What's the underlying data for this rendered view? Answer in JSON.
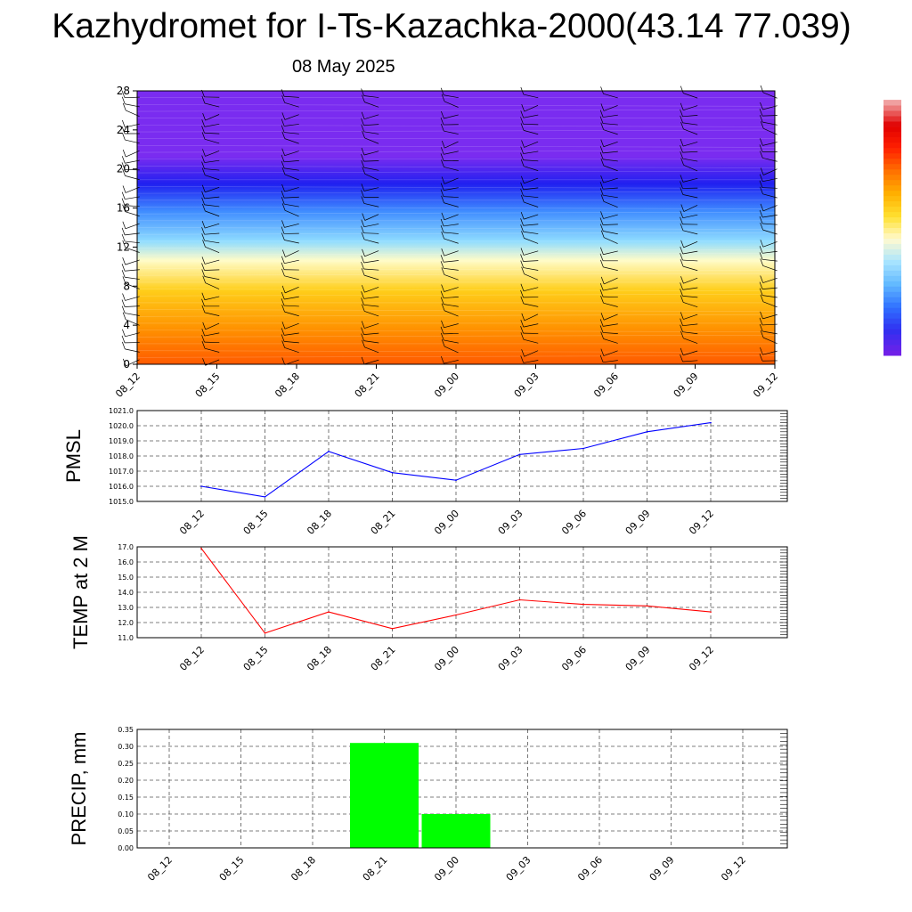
{
  "title": "Kazhydromet for I-Ts-Kazachka-2000(43.14 77.039)",
  "subtitle": "08 May 2025",
  "times": [
    "08_12",
    "08_15",
    "08_18",
    "08_21",
    "09_00",
    "09_03",
    "09_06",
    "09_09",
    "09_12"
  ],
  "colors": {
    "pmsl_line": "#0000ff",
    "temp_line": "#ff0000",
    "precip_bar": "#00ff00",
    "grid": "#555555"
  },
  "chart_data": [
    {
      "type": "heatmap",
      "title": "",
      "ylim": [
        0,
        28
      ],
      "y_ticks": [
        "0",
        "4",
        "8",
        "12",
        "16",
        "20",
        "24",
        "28"
      ],
      "color_bands_bottom_to_top": [
        "#ff5a00",
        "#ff9200",
        "#ffce1a",
        "#fffcc8",
        "#8fdcff",
        "#3f8cff",
        "#2020f0",
        "#7a2cf0"
      ],
      "colorbar": [
        "#7020e8",
        "#3030f0",
        "#3070ff",
        "#60b8ff",
        "#a8e4ff",
        "#fffad0",
        "#ffe030",
        "#ffb000",
        "#ff7000",
        "#ff2000",
        "#e00000",
        "#f0a0a0"
      ],
      "wind_barbs": true
    },
    {
      "type": "line",
      "ylabel": "PMSL",
      "ylim": [
        1015.0,
        1021.0
      ],
      "y_ticks": [
        "1015.0",
        "1016.0",
        "1017.0",
        "1018.0",
        "1019.0",
        "1020.0",
        "1021.0"
      ],
      "categories": [
        "08_12",
        "08_15",
        "08_18",
        "08_21",
        "09_00",
        "09_03",
        "09_06",
        "09_09",
        "09_12"
      ],
      "values": [
        1016.0,
        1015.3,
        1018.3,
        1016.9,
        1016.4,
        1018.1,
        1018.5,
        1019.6,
        1020.2
      ]
    },
    {
      "type": "line",
      "ylabel": "TEMP at 2 M",
      "ylim": [
        11.0,
        17.0
      ],
      "y_ticks": [
        "11.0",
        "12.0",
        "13.0",
        "14.0",
        "15.0",
        "16.0",
        "17.0"
      ],
      "categories": [
        "08_12",
        "08_15",
        "08_18",
        "08_21",
        "09_00",
        "09_03",
        "09_06",
        "09_09",
        "09_12"
      ],
      "values": [
        16.9,
        11.3,
        12.7,
        11.6,
        12.5,
        13.5,
        13.2,
        13.1,
        12.7
      ]
    },
    {
      "type": "bar",
      "ylabel": "PRECIP, mm",
      "ylim": [
        0.0,
        0.35
      ],
      "y_ticks": [
        "0.00",
        "0.05",
        "0.10",
        "0.15",
        "0.20",
        "0.25",
        "0.30",
        "0.35"
      ],
      "categories": [
        "08_12",
        "08_15",
        "08_18",
        "08_21",
        "09_00",
        "09_03",
        "09_06",
        "09_09",
        "09_12"
      ],
      "values": [
        0.0,
        0.0,
        0.0,
        0.31,
        0.1,
        0.0,
        0.0,
        0.0,
        0.0
      ]
    }
  ]
}
